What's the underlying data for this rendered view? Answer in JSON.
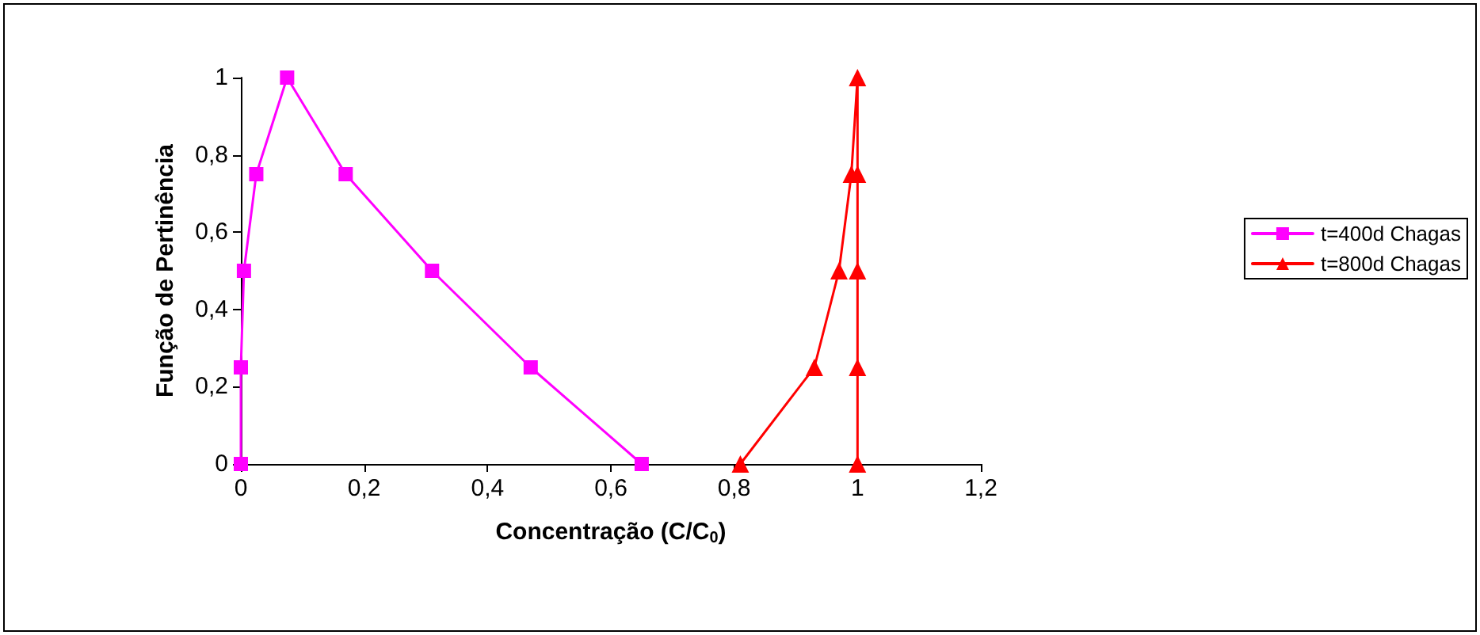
{
  "chart_data": {
    "type": "line",
    "xlabel": "Concentração (C/C$_{0}$)",
    "ylabel": "Função de Pertinência",
    "xlim": [
      0,
      1.2
    ],
    "xticks": [
      0,
      {
        "value": 0.2,
        "label": "0,2"
      },
      {
        "value": 0.4,
        "label": "0,4"
      },
      {
        "value": 0.6,
        "label": "0,6"
      },
      {
        "value": 0.8,
        "label": "0,8"
      },
      1,
      {
        "value": 1.2,
        "label": "1,2"
      }
    ],
    "ylim": [
      0,
      1
    ],
    "yticks": [
      0,
      {
        "value": 0.2,
        "label": "0,2"
      },
      {
        "value": 0.4,
        "label": "0,4"
      },
      {
        "value": 0.6,
        "label": "0,6"
      },
      {
        "value": 0.8,
        "label": "0,8"
      },
      1
    ],
    "grid": false,
    "legend": "right",
    "line_style": "solid",
    "series": [
      {
        "name": "t=400d Chagas",
        "color": "#ff00ff",
        "marker": "square",
        "x": [
          0,
          0,
          0.005,
          0.025,
          0.075,
          0.17,
          0.31,
          0.47,
          0.65
        ],
        "values": [
          0,
          0.25,
          0.5,
          0.75,
          1,
          0.75,
          0.5,
          0.25,
          0
        ]
      },
      {
        "name": "t=800d Chagas",
        "color": "#ff0000",
        "marker": "triangle",
        "x": [
          0.81,
          0.93,
          0.97,
          0.99,
          1,
          1,
          1,
          1,
          1
        ],
        "values": [
          0,
          0.25,
          0.5,
          0.75,
          1,
          0.75,
          0.5,
          0.25,
          0
        ]
      }
    ]
  }
}
